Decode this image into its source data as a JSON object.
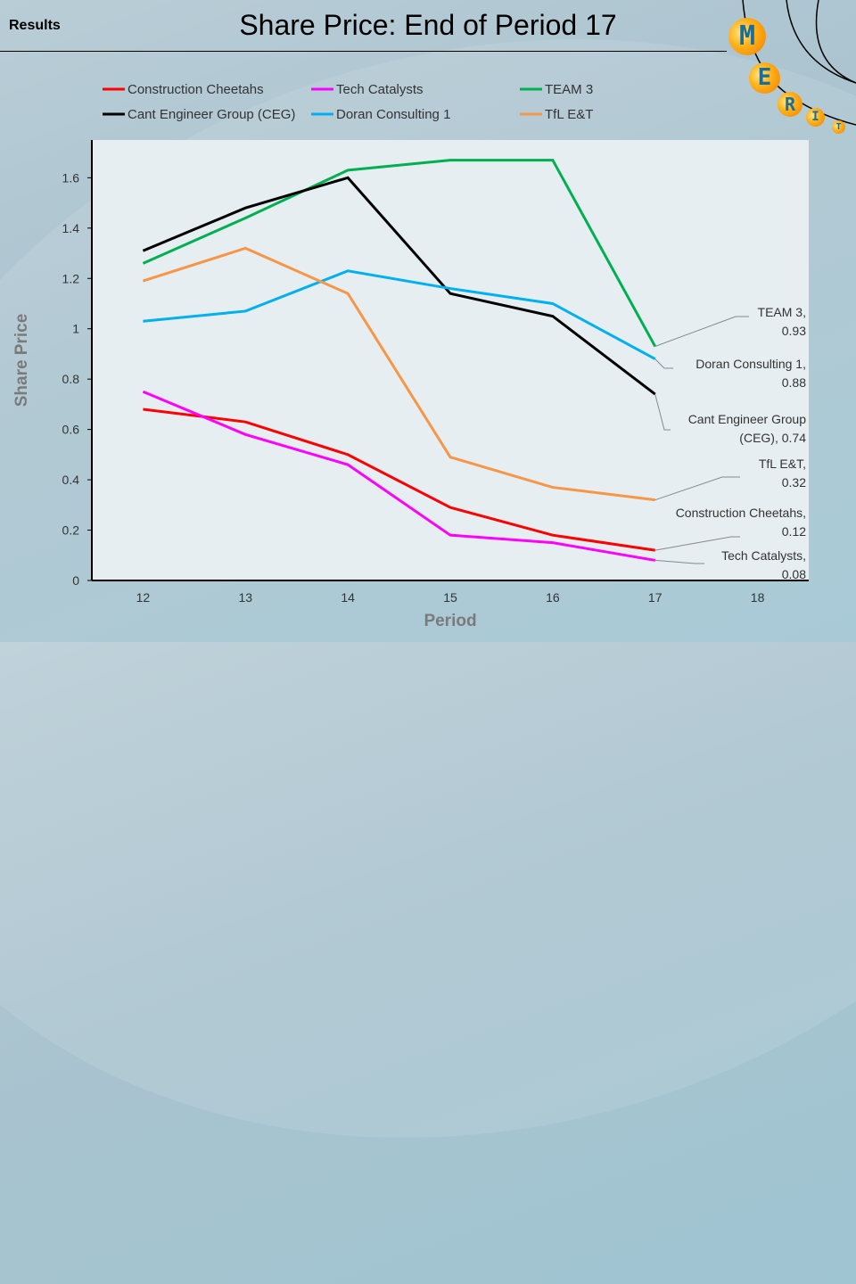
{
  "header": {
    "section": "Results",
    "title": "Share Price: End of Period 17"
  },
  "logo": {
    "letters": [
      "M",
      "E",
      "R",
      "I",
      "T"
    ]
  },
  "chart_data": {
    "type": "line",
    "title": "Share Price: End of Period 17",
    "xlabel": "Period",
    "ylabel": "Share Price",
    "x": [
      12,
      13,
      14,
      15,
      16,
      17
    ],
    "x_ticks": [
      12,
      13,
      14,
      15,
      16,
      17,
      18
    ],
    "y_ticks": [
      "0",
      "0.2",
      "0.4",
      "0.6",
      "0.8",
      "1",
      "1.2",
      "1.4",
      "1.6"
    ],
    "xlim": [
      11.5,
      18.5
    ],
    "ylim": [
      0,
      1.75
    ],
    "grid": false,
    "legend": "top",
    "series": [
      {
        "name": "Construction Cheetahs",
        "color": "#ff0000",
        "values": [
          0.68,
          0.63,
          0.5,
          0.29,
          0.18,
          0.12
        ],
        "end_label": [
          "Construction Cheetahs,",
          "0.12"
        ]
      },
      {
        "name": "Tech Catalysts",
        "color": "#ff00ff",
        "values": [
          0.75,
          0.58,
          0.46,
          0.18,
          0.15,
          0.08
        ],
        "end_label": [
          "Tech Catalysts,",
          "0.08"
        ]
      },
      {
        "name": "TEAM 3",
        "color": "#00b050",
        "values": [
          1.26,
          1.44,
          1.63,
          1.67,
          1.67,
          0.93
        ],
        "end_label": [
          "TEAM 3,",
          "0.93"
        ]
      },
      {
        "name": "Cant Engineer Group (CEG)",
        "color": "#000000",
        "values": [
          1.31,
          1.48,
          1.6,
          1.14,
          1.05,
          0.74
        ],
        "end_label": [
          "Cant Engineer Group",
          "(CEG), 0.74"
        ]
      },
      {
        "name": "Doran Consulting 1",
        "color": "#00b0f0",
        "values": [
          1.03,
          1.07,
          1.23,
          1.16,
          1.1,
          0.88
        ],
        "end_label": [
          "Doran Consulting 1,",
          "0.88"
        ]
      },
      {
        "name": "TfL E&T",
        "color": "#f79646",
        "values": [
          1.19,
          1.32,
          1.14,
          0.49,
          0.37,
          0.32
        ],
        "end_label": [
          "TfL E&T,",
          "0.32"
        ]
      }
    ]
  }
}
